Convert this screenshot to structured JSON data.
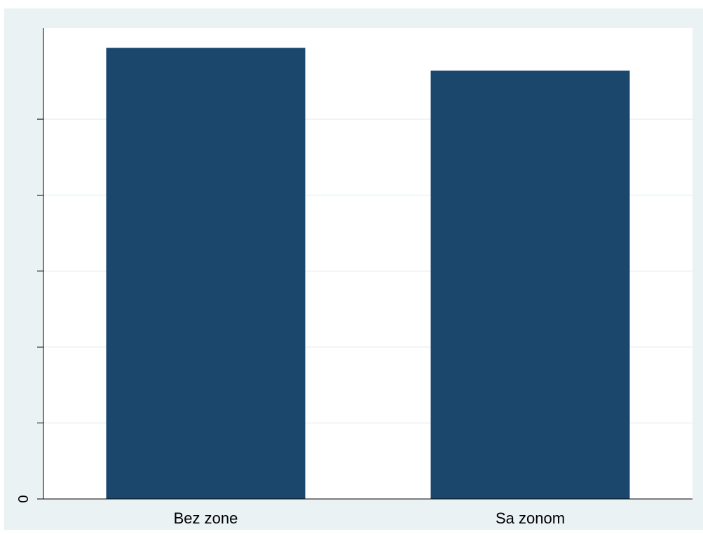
{
  "chart_data": {
    "type": "bar",
    "categories": [
      "Bez zone",
      "Sa zonom"
    ],
    "values": [
      5.94,
      5.64
    ],
    "ylim": [
      0,
      6.2
    ],
    "yticks": [
      0,
      1,
      2,
      3,
      4,
      5
    ],
    "ytick_labels": [
      "0",
      "",
      "",
      "",
      "",
      ""
    ],
    "grid": true,
    "title": "",
    "xlabel": "",
    "ylabel": "",
    "colors": {
      "bar": "#1c476d",
      "plot_background": "#ffffff",
      "outer_background": "#eaf2f3",
      "grid": "#eaf2f3",
      "axis": "#000000"
    }
  }
}
